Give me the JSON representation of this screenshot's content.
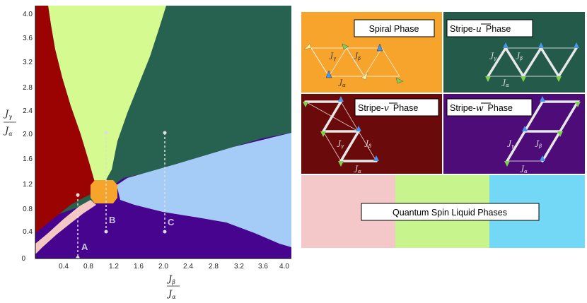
{
  "axes": {
    "x_ticks": [
      "0.4",
      "0.8",
      "1.2",
      "1.6",
      "2.0",
      "2.4",
      "2.8",
      "3.2",
      "3.6",
      "4.0"
    ],
    "y_ticks": [
      "0",
      "0.4",
      "0.8",
      "1.2",
      "1.6",
      "2.0",
      "2.4",
      "2.8",
      "3.2",
      "3.6",
      "4.0"
    ],
    "x_label_num": "J",
    "x_label_num_sub": "β",
    "x_label_den": "J",
    "x_label_den_sub": "α",
    "y_label_num": "J",
    "y_label_num_sub": "γ",
    "y_label_den": "J",
    "y_label_den_sub": "α"
  },
  "points": {
    "a": "A",
    "b": "B",
    "c": "C"
  },
  "panels": {
    "spiral": "Spiral Phase",
    "stripe_u_prefix": "Stripe-",
    "stripe_u_vec": "u",
    "stripe_v_prefix": "Stripe-",
    "stripe_v_vec": "v",
    "stripe_w_prefix": "Stripe-",
    "stripe_w_vec": "w",
    "phase_word": "Phase",
    "qsl": "Quantum Spin Liquid Phases"
  },
  "lattice_labels": {
    "j": "J",
    "alpha": "α",
    "beta": "β",
    "gamma": "γ"
  },
  "colors": {
    "spiral": "#f7a42c",
    "stripe_u": "#245a4a",
    "stripe_v": "#6b0a0a",
    "stripe_w": "#4d0c78",
    "qsl_pink": "#f4c8c8",
    "qsl_green": "#c8f48e",
    "qsl_blue": "#72d8f6",
    "map_red": "#9b0202",
    "map_lime": "#d5fb90",
    "map_teal": "#27614f",
    "map_lightblue": "#a5cbf7",
    "map_indigo": "#46048f",
    "map_pink": "#f5c7c2"
  }
}
